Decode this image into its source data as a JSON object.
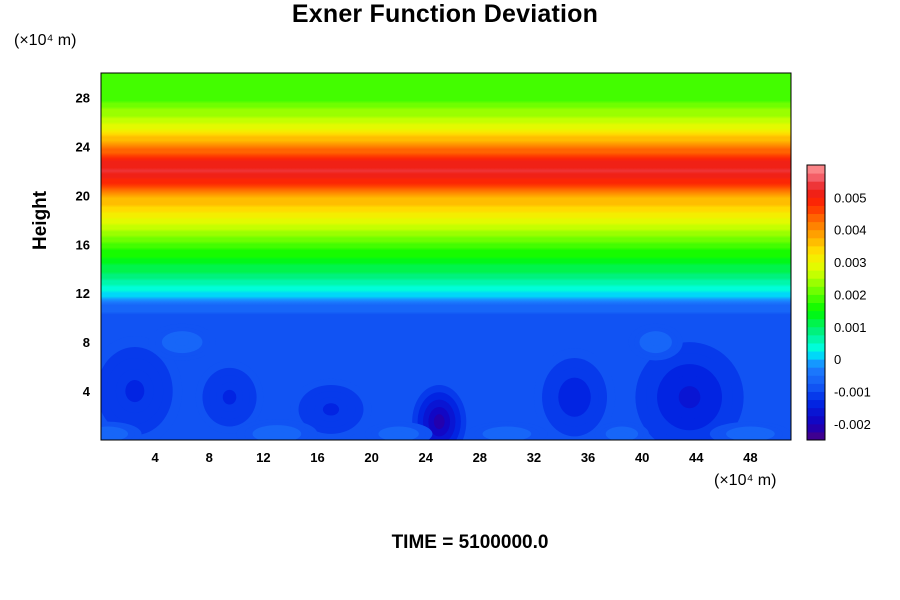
{
  "chart_data": {
    "type": "heatmap",
    "title": "Exner Function Deviation",
    "ylabel": "Height",
    "xlabel": "",
    "x_unit_label": "(×10⁴ m)",
    "y_unit_label": "(×10⁴ m)",
    "footer": {
      "label": "TIME = ",
      "value": "5100000.0"
    },
    "xlim": [
      0,
      51
    ],
    "ylim": [
      0,
      30
    ],
    "x_ticks": [
      4,
      8,
      12,
      16,
      20,
      24,
      28,
      32,
      36,
      40,
      44,
      48
    ],
    "y_ticks": [
      4,
      8,
      12,
      16,
      20,
      24,
      28
    ],
    "colorbar": {
      "range": [
        -0.0025,
        0.006
      ],
      "ticks": [
        -0.002,
        -0.001,
        0,
        0.001,
        0.002,
        0.003,
        0.004,
        0.005
      ],
      "tick_labels": [
        "-0.002",
        "-0.001",
        "0",
        "0.001",
        "0.002",
        "0.003",
        "0.004",
        "0.005"
      ],
      "levels": 34,
      "colormap": "rainbow (purple-blue-cyan-green-yellow-orange-red-pink)"
    },
    "vertical_profile": [
      {
        "height": 0,
        "value": -0.0009
      },
      {
        "height": 9.8,
        "value": -0.0009
      },
      {
        "height": 11,
        "value": -0.0006
      },
      {
        "height": 12,
        "value": 0.0002
      },
      {
        "height": 13,
        "value": 0.0007
      },
      {
        "height": 15,
        "value": 0.0015
      },
      {
        "height": 17,
        "value": 0.0024
      },
      {
        "height": 19,
        "value": 0.0034
      },
      {
        "height": 20,
        "value": 0.0038
      },
      {
        "height": 21,
        "value": 0.0048
      },
      {
        "height": 22,
        "value": 0.0053
      },
      {
        "height": 23,
        "value": 0.0049
      },
      {
        "height": 24.5,
        "value": 0.0037
      },
      {
        "height": 26,
        "value": 0.0026
      },
      {
        "height": 28,
        "value": 0.0019
      },
      {
        "height": 30,
        "value": 0.0018
      }
    ],
    "low_level_anomalies": [
      {
        "x": 25,
        "y": 1.5,
        "rx": 2.0,
        "ry": 3.0,
        "value": -0.0022
      },
      {
        "x": 2.5,
        "y": 4,
        "rx": 3.5,
        "ry": 4.5,
        "value": -0.0013
      },
      {
        "x": 9.5,
        "y": 3.5,
        "rx": 2.5,
        "ry": 3.0,
        "value": -0.0013
      },
      {
        "x": 17,
        "y": 2.5,
        "rx": 3.0,
        "ry": 2.5,
        "value": -0.0013
      },
      {
        "x": 35,
        "y": 3.5,
        "rx": 3.0,
        "ry": 4.0,
        "value": -0.0015
      },
      {
        "x": 43.5,
        "y": 3.5,
        "rx": 4.0,
        "ry": 4.5,
        "value": -0.0016
      },
      {
        "x": 41,
        "y": 8,
        "rx": 2.0,
        "ry": 1.5,
        "value": -0.0006
      },
      {
        "x": 6,
        "y": 8,
        "rx": 2.5,
        "ry": 1.5,
        "value": -0.0006
      },
      {
        "x": 0.5,
        "y": 0.5,
        "rx": 2.5,
        "ry": 1.0,
        "value": -0.0006
      },
      {
        "x": 13,
        "y": 0.5,
        "rx": 3.0,
        "ry": 1.2,
        "value": -0.0006
      },
      {
        "x": 22,
        "y": 0.5,
        "rx": 2.5,
        "ry": 1.0,
        "value": -0.0006
      },
      {
        "x": 30,
        "y": 0.5,
        "rx": 3.0,
        "ry": 1.0,
        "value": -0.0006
      },
      {
        "x": 38.5,
        "y": 0.5,
        "rx": 2.0,
        "ry": 1.0,
        "value": -0.0006
      },
      {
        "x": 48,
        "y": 0.5,
        "rx": 3.0,
        "ry": 1.0,
        "value": -0.0006
      }
    ]
  }
}
